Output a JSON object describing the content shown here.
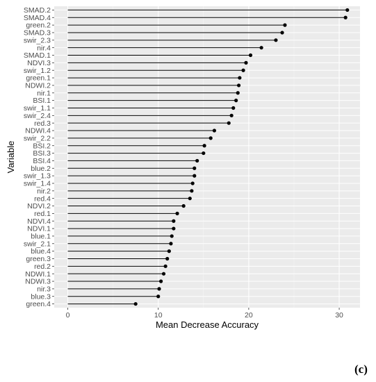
{
  "panel_label": "(c)",
  "colors": {
    "panel_bg": "#ebebeb",
    "grid_major": "#ffffff",
    "grid_minor": "#f5f5f5",
    "segment": "#000000",
    "point": "#000000",
    "tick_text": "#4d4d4d"
  },
  "chart_data": {
    "type": "lollipop",
    "title": "",
    "xlabel": "Mean Decrease Accuracy",
    "ylabel": "Variable",
    "xlim": [
      -1.5,
      32.3
    ],
    "x_ticks": [
      0,
      10,
      20,
      30
    ],
    "grid": true,
    "categories": [
      "SMAD.2",
      "SMAD.4",
      "green.2",
      "SMAD.3",
      "swir_2.3",
      "nir.4",
      "SMAD.1",
      "NDVI.3",
      "swir_1.2",
      "green.1",
      "NDWI.2",
      "nir.1",
      "BSI.1",
      "swir_1.1",
      "swir_2.4",
      "red.3",
      "NDWI.4",
      "swir_2.2",
      "BSI.2",
      "BSI.3",
      "BSI.4",
      "blue.2",
      "swir_1.3",
      "swir_1.4",
      "nir.2",
      "red.4",
      "NDVI.2",
      "red.1",
      "NDVI.4",
      "NDVI.1",
      "blue.1",
      "swir_2.1",
      "blue.4",
      "green.3",
      "red.2",
      "NDWI.1",
      "NDWI.3",
      "nir.3",
      "blue.3",
      "green.4"
    ],
    "values": [
      30.9,
      30.7,
      24.0,
      23.7,
      23.0,
      21.4,
      20.2,
      19.7,
      19.4,
      19.0,
      18.9,
      18.8,
      18.6,
      18.3,
      18.1,
      17.8,
      16.2,
      15.8,
      15.1,
      15.0,
      14.3,
      14.0,
      14.0,
      13.8,
      13.7,
      13.5,
      12.8,
      12.1,
      11.7,
      11.7,
      11.5,
      11.4,
      11.2,
      11.0,
      10.8,
      10.6,
      10.3,
      10.1,
      10.0,
      7.5
    ]
  }
}
